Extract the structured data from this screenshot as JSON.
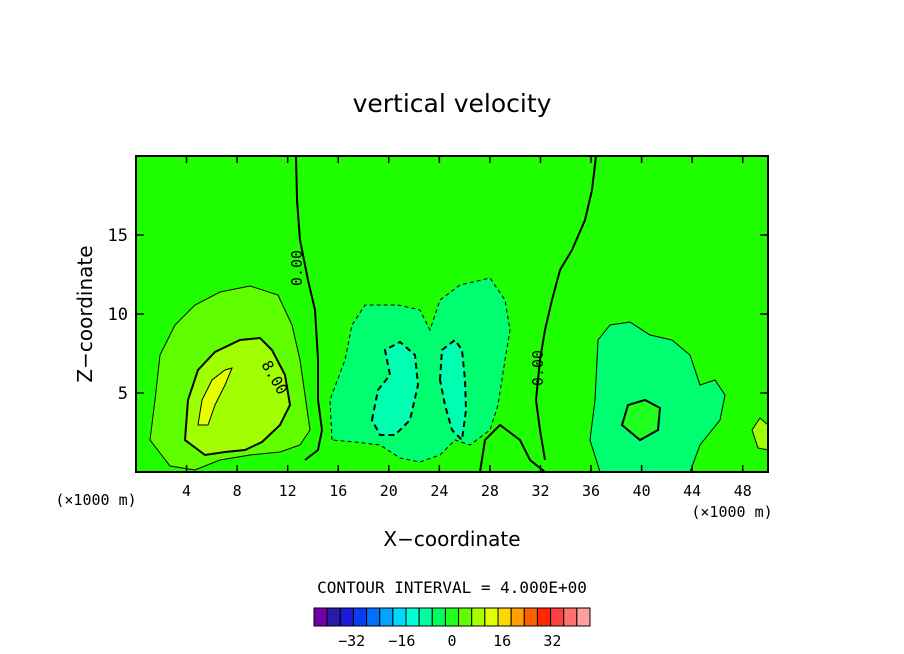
{
  "chart_data": {
    "type": "contour",
    "title": "vertical velocity",
    "xlabel": "X−coordinate",
    "ylabel": "Z−coordinate",
    "x_unit_left": "(×1000 m)",
    "x_unit_right": "(×1000 m)",
    "xlim": [
      0,
      50
    ],
    "ylim": [
      0,
      20
    ],
    "x_ticks": [
      4,
      8,
      12,
      16,
      20,
      24,
      28,
      32,
      36,
      40,
      44,
      48
    ],
    "y_ticks": [
      5,
      10,
      15
    ],
    "contour_interval_label": "CONTOUR INTERVAL = 4.000E+00",
    "contour_labels": [
      "0.00",
      "8.00",
      "0.00"
    ],
    "colorbar": {
      "levels": [
        -36,
        -32,
        -28,
        -24,
        -20,
        -16,
        -12,
        -8,
        -4,
        0,
        4,
        8,
        12,
        16,
        20,
        24,
        28,
        32,
        36
      ],
      "colors": [
        "#7000a8",
        "#2a1aa8",
        "#1c1cd8",
        "#0a3cf0",
        "#0070ff",
        "#00a4ff",
        "#00d8ff",
        "#00ffd8",
        "#00ffa0",
        "#00ff60",
        "#20ff20",
        "#60ff00",
        "#a8ff00",
        "#e0ff00",
        "#ffd800",
        "#ffa000",
        "#ff6000",
        "#ff2800",
        "#ff4040",
        "#ff7070",
        "#ffa0a0"
      ],
      "tick_labels": [
        "−32",
        "−16",
        "0",
        "16",
        "32"
      ],
      "tick_values": [
        -32,
        -16,
        0,
        16,
        32
      ]
    },
    "colors": {
      "background_field": "#20ff00",
      "weak_down": "#00ff60",
      "mid_down": "#00ffa0",
      "strong_down": "#00ffd0",
      "weak_up": "#60ff00",
      "mid_up": "#a0ff00",
      "strong_up": "#e0ff00"
    },
    "grid": false
  }
}
